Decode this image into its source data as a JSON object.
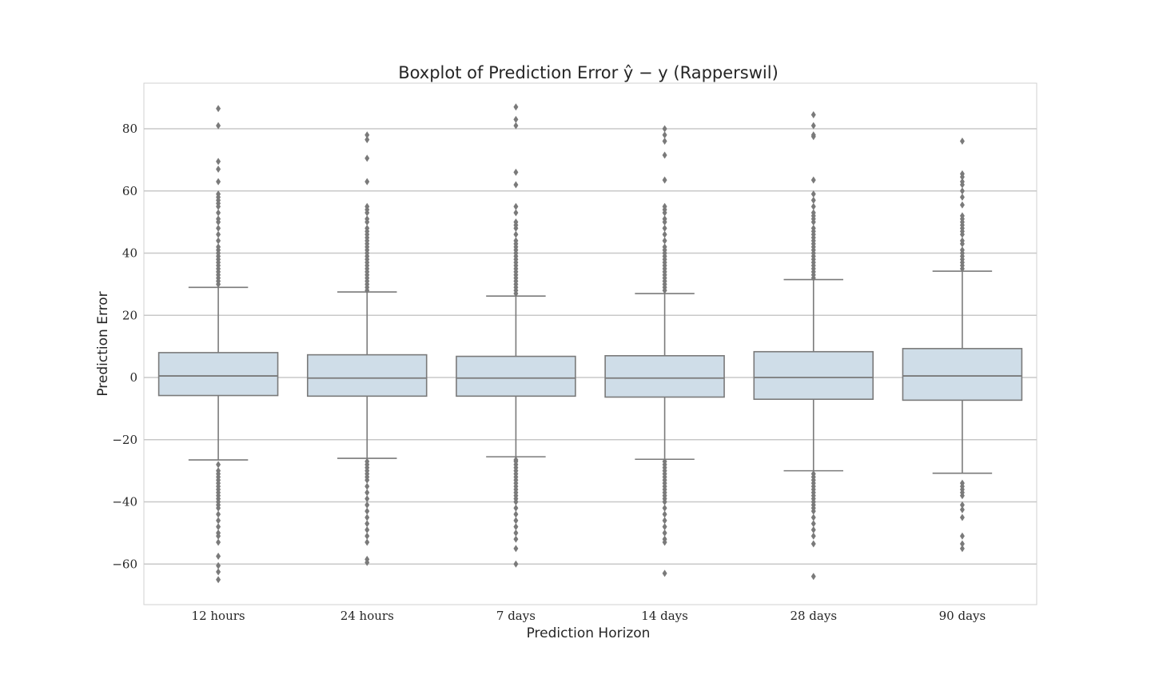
{
  "chart_data": {
    "type": "boxplot",
    "title": "Boxplot of Prediction Error ŷ − y (Rapperswil)",
    "xlabel": "Prediction Horizon",
    "ylabel": "Prediction Error",
    "ylim": [
      -72,
      95
    ],
    "yticks": [
      -60,
      -40,
      -20,
      0,
      20,
      40,
      60,
      80
    ],
    "ytick_labels": [
      "−60",
      "−40",
      "−20",
      "0",
      "20",
      "40",
      "60",
      "80"
    ],
    "grid": "horizontal",
    "box_color": "#cfdde8",
    "line_color": "#7a7a7a",
    "grid_color": "#c8c8c8",
    "categories": [
      "12 hours",
      "24 hours",
      "7 days",
      "14 days",
      "28 days",
      "90 days"
    ],
    "boxes": [
      {
        "q1": -5.8,
        "median": 0.5,
        "q3": 8.0,
        "whisker_low": -26.5,
        "whisker_high": 29.0,
        "outliers_high": [
          30,
          31,
          32,
          33,
          34,
          35,
          36,
          37,
          38,
          39,
          40,
          41,
          42,
          44,
          46,
          48,
          50,
          51,
          53,
          55,
          56,
          57,
          58,
          59,
          63,
          67,
          69.5,
          81,
          86.5
        ],
        "outliers_low": [
          -28,
          -30,
          -31,
          -32,
          -33,
          -34,
          -35,
          -36,
          -37,
          -38,
          -39,
          -40,
          -41,
          -42,
          -44,
          -46,
          -48,
          -50,
          -51,
          -53,
          -57.5,
          -60.5,
          -62.5,
          -65
        ]
      },
      {
        "q1": -6.0,
        "median": -0.2,
        "q3": 7.3,
        "whisker_low": -26.0,
        "whisker_high": 27.5,
        "outliers_high": [
          28,
          29,
          30,
          31,
          32,
          33,
          34,
          35,
          36,
          37,
          38,
          39,
          40,
          41,
          42,
          43,
          44,
          45,
          46,
          47,
          48,
          50,
          51,
          53,
          54,
          55,
          63,
          70.5,
          76.5,
          78
        ],
        "outliers_low": [
          -27,
          -28,
          -29,
          -30,
          -31,
          -32,
          -33,
          -35,
          -37,
          -39,
          -41,
          -43,
          -45,
          -47,
          -49,
          -51,
          -53,
          -58.5,
          -59.5
        ]
      },
      {
        "q1": -6.0,
        "median": -0.2,
        "q3": 6.8,
        "whisker_low": -25.5,
        "whisker_high": 26.2,
        "outliers_high": [
          27,
          28,
          29,
          30,
          31,
          32,
          33,
          34,
          35,
          36,
          37,
          38,
          39,
          40,
          41,
          42,
          43,
          44,
          46,
          48,
          49,
          50,
          53,
          55,
          62,
          66,
          81,
          83,
          87
        ],
        "outliers_low": [
          -26.5,
          -27,
          -28,
          -29,
          -30,
          -31,
          -32,
          -33,
          -34,
          -35,
          -36,
          -37,
          -38,
          -39,
          -40,
          -42,
          -44,
          -46,
          -48,
          -50,
          -52,
          -55,
          -60
        ]
      },
      {
        "q1": -6.3,
        "median": -0.2,
        "q3": 7.0,
        "whisker_low": -26.3,
        "whisker_high": 27.0,
        "outliers_high": [
          28,
          29,
          30,
          31,
          32,
          33,
          34,
          35,
          36,
          37,
          38,
          39,
          40,
          41,
          42,
          44,
          46,
          48,
          50,
          51,
          53,
          54,
          55,
          63.5,
          71.5,
          76,
          78,
          80
        ],
        "outliers_low": [
          -27,
          -28,
          -29,
          -30,
          -31,
          -32,
          -33,
          -34,
          -35,
          -36,
          -37,
          -38,
          -39,
          -40,
          -42,
          -44,
          -46,
          -48,
          -50,
          -52,
          -53,
          -63
        ]
      },
      {
        "q1": -7.0,
        "median": 0.0,
        "q3": 8.3,
        "whisker_low": -30.0,
        "whisker_high": 31.5,
        "outliers_high": [
          32,
          33,
          34,
          35,
          36,
          37,
          38,
          39,
          40,
          41,
          42,
          43,
          44,
          45,
          46,
          47,
          48,
          50,
          51,
          52,
          53,
          55,
          57,
          59,
          63.5,
          77.5,
          78,
          81,
          84.5
        ],
        "outliers_low": [
          -31,
          -32,
          -33,
          -34,
          -35,
          -36,
          -37,
          -38,
          -39,
          -40,
          -41,
          -42,
          -43,
          -45,
          -47,
          -49,
          -51,
          -53.5,
          -64
        ]
      },
      {
        "q1": -7.3,
        "median": 0.5,
        "q3": 9.3,
        "whisker_low": -30.8,
        "whisker_high": 34.2,
        "outliers_high": [
          35,
          36,
          37,
          38,
          39,
          40,
          41,
          43,
          44,
          46,
          47,
          48,
          49,
          50,
          51,
          52,
          55.5,
          58,
          60,
          62,
          63,
          64.5,
          65.5,
          76
        ],
        "outliers_low": [
          -34,
          -35,
          -36,
          -37,
          -38,
          -41,
          -42.5,
          -45,
          -51,
          -53.5,
          -55
        ]
      }
    ]
  }
}
